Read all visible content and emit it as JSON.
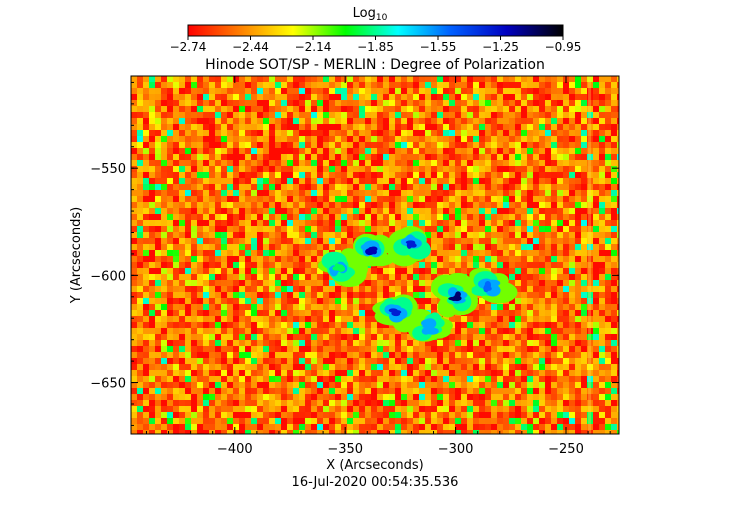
{
  "colorbar": {
    "label": "Log",
    "label_sub": "10",
    "ticks": [
      "-2.74",
      "-2.44",
      "-2.14",
      "-1.85",
      "-1.55",
      "-1.25",
      "-0.95"
    ],
    "range": [
      -2.74,
      -0.95
    ],
    "colormap": [
      "#ff0000",
      "#ff8000",
      "#ffff00",
      "#00ff00",
      "#00ffff",
      "#0060ff",
      "#0000c0",
      "#000000"
    ]
  },
  "chart_data": {
    "type": "heatmap",
    "title": "Hinode SOT/SP - MERLIN : Degree of Polarization",
    "xlabel": "X (Arcseconds)",
    "ylabel": "Y (Arcseconds)",
    "xlim": [
      -447,
      -226
    ],
    "ylim": [
      -674,
      -507
    ],
    "x_ticks": [
      -400,
      -350,
      -300,
      -250
    ],
    "y_ticks": [
      -550,
      -600,
      -650
    ],
    "background_level": -2.5,
    "active_regions": [
      {
        "x": -338,
        "y": -588,
        "level": -1.2
      },
      {
        "x": -327,
        "y": -617,
        "level": -1.3
      },
      {
        "x": -320,
        "y": -585,
        "level": -1.3
      },
      {
        "x": -300,
        "y": -610,
        "level": -1.1
      },
      {
        "x": -285,
        "y": -605,
        "level": -1.5
      },
      {
        "x": -312,
        "y": -624,
        "level": -1.6
      },
      {
        "x": -353,
        "y": -596,
        "level": -1.9
      }
    ],
    "annotation": "16-Jul-2020 00:54:35.536"
  }
}
